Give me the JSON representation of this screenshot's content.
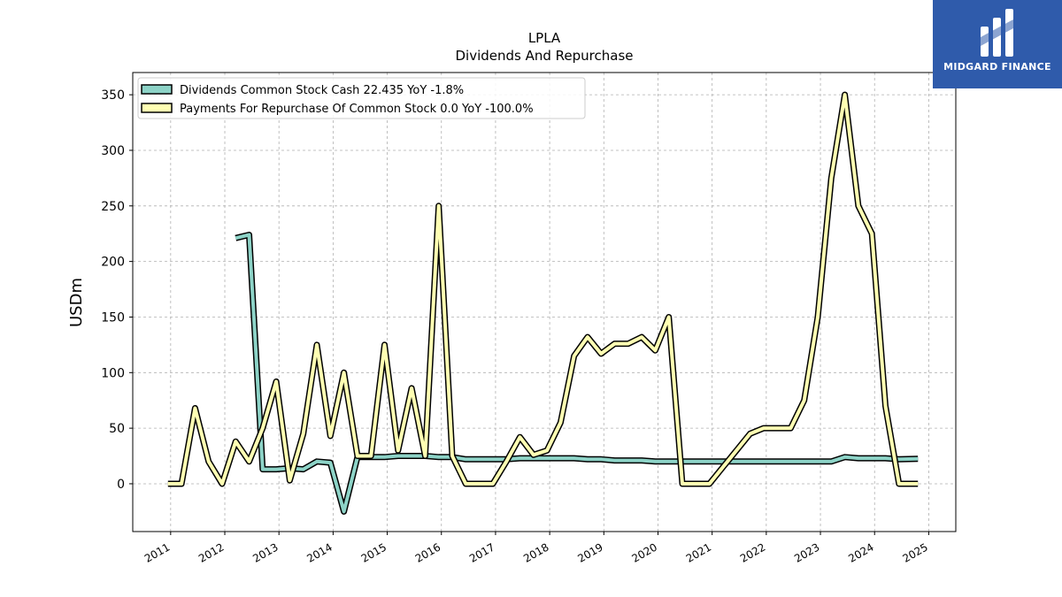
{
  "brand": {
    "name": "MIDGARD FINANCE",
    "color": "#2f5bab"
  },
  "chart_data": {
    "type": "line",
    "title": "LPLA",
    "subtitle": "Dividends And Repurchase",
    "ylabel": "USDm",
    "xlabel": "",
    "ylim": [
      -43,
      370
    ],
    "xlim": [
      2010.3,
      2025.5
    ],
    "yticks": [
      0,
      50,
      100,
      150,
      200,
      250,
      300,
      350
    ],
    "xticks": [
      "2011",
      "2012",
      "2013",
      "2014",
      "2015",
      "2016",
      "2017",
      "2018",
      "2019",
      "2020",
      "2021",
      "2022",
      "2023",
      "2024",
      "2025"
    ],
    "grid": true,
    "legend_position": "top-left",
    "series": [
      {
        "name": "Dividends Common Stock Cash  22.435 YoY -1.8%",
        "color": "#8dd3c7",
        "x": [
          2012.2,
          2012.45,
          2012.7,
          2012.95,
          2013.2,
          2013.45,
          2013.7,
          2013.95,
          2014.2,
          2014.45,
          2014.7,
          2014.95,
          2015.2,
          2015.45,
          2015.7,
          2015.95,
          2016.2,
          2016.45,
          2016.7,
          2016.95,
          2017.2,
          2017.45,
          2017.7,
          2017.95,
          2018.2,
          2018.45,
          2018.7,
          2018.95,
          2019.2,
          2019.45,
          2019.7,
          2019.95,
          2020.2,
          2020.45,
          2020.7,
          2020.95,
          2021.2,
          2021.45,
          2021.7,
          2021.95,
          2022.2,
          2022.45,
          2022.7,
          2022.95,
          2023.2,
          2023.45,
          2023.7,
          2023.95,
          2024.2,
          2024.45,
          2024.8
        ],
        "y": [
          221,
          224,
          13,
          13,
          14,
          13,
          20,
          19,
          -25,
          24,
          24,
          24,
          25,
          25,
          25,
          24,
          24,
          22,
          22,
          22,
          22,
          23,
          23,
          23,
          23,
          23,
          22,
          22,
          21,
          21,
          21,
          20,
          20,
          20,
          20,
          20,
          20,
          20,
          20,
          20,
          20,
          20,
          20,
          20,
          20,
          24,
          23,
          23,
          23,
          22,
          22.4
        ]
      },
      {
        "name": "Payments For Repurchase Of Common Stock  0.0 YoY -100.0%",
        "color": "#ffffb3",
        "x": [
          2010.95,
          2011.2,
          2011.45,
          2011.7,
          2011.95,
          2012.2,
          2012.45,
          2012.7,
          2012.95,
          2013.2,
          2013.45,
          2013.7,
          2013.95,
          2014.2,
          2014.45,
          2014.7,
          2014.95,
          2015.2,
          2015.45,
          2015.7,
          2015.95,
          2016.2,
          2016.45,
          2016.7,
          2016.95,
          2017.2,
          2017.45,
          2017.7,
          2017.95,
          2018.2,
          2018.45,
          2018.7,
          2018.95,
          2019.2,
          2019.45,
          2019.7,
          2019.95,
          2020.2,
          2020.45,
          2020.7,
          2020.95,
          2021.2,
          2021.45,
          2021.7,
          2021.95,
          2022.2,
          2022.45,
          2022.7,
          2022.95,
          2023.2,
          2023.45,
          2023.7,
          2023.95,
          2024.2,
          2024.45,
          2024.8
        ],
        "y": [
          0,
          0,
          68,
          20,
          0,
          38,
          20,
          50,
          92,
          3,
          45,
          125,
          43,
          100,
          25,
          25,
          125,
          30,
          86,
          25,
          250,
          25,
          0,
          0,
          0,
          20,
          42,
          26,
          30,
          55,
          115,
          132,
          117,
          126,
          126,
          132,
          120,
          150,
          0,
          0,
          0,
          15,
          30,
          45,
          50,
          50,
          50,
          75,
          150,
          275,
          350,
          250,
          225,
          70,
          0,
          0
        ]
      }
    ]
  }
}
